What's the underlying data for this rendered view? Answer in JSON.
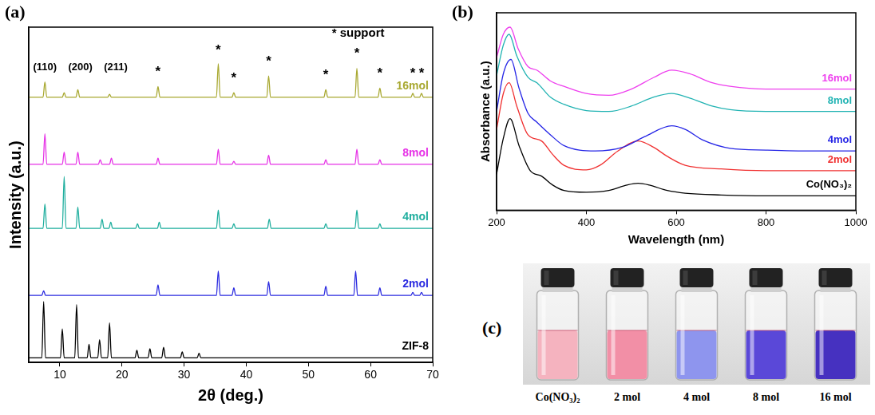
{
  "chart_data": [
    {
      "type": "line",
      "panel_label": "(a)",
      "x_label": "2θ (deg.)",
      "y_label": "Intensity (a.u.)",
      "xlim": [
        5,
        70
      ],
      "xticks": [
        10,
        20,
        30,
        40,
        50,
        60,
        70
      ],
      "ylim": [
        0,
        110
      ],
      "tick_labels": "x",
      "grid": false,
      "annotations": [
        {
          "text": "(110)",
          "x": 7.6,
          "y": 95
        },
        {
          "text": "(200)",
          "x": 13.3,
          "y": 95
        },
        {
          "text": "(211)",
          "x": 19,
          "y": 95
        },
        {
          "text": "* support",
          "x": 58,
          "y": 106
        },
        {
          "text": "*",
          "x": 25.8,
          "y": 93
        },
        {
          "text": "*",
          "x": 35.5,
          "y": 100
        },
        {
          "text": "*",
          "x": 38,
          "y": 91
        },
        {
          "text": "*",
          "x": 43.6,
          "y": 96.5
        },
        {
          "text": "*",
          "x": 52.8,
          "y": 92
        },
        {
          "text": "*",
          "x": 57.8,
          "y": 99
        },
        {
          "text": "*",
          "x": 61.5,
          "y": 92.5
        },
        {
          "text": "*",
          "x": 66.8,
          "y": 92.5
        },
        {
          "text": "*",
          "x": 68.2,
          "y": 92.5
        }
      ],
      "series": [
        {
          "name": "16mol",
          "color": "#a8a830",
          "x": [
            5,
            7.3,
            7.6,
            7.9,
            10.4,
            10.7,
            11.0,
            12.6,
            12.9,
            13.2,
            17.7,
            18.0,
            18.3,
            25.5,
            25.8,
            26.1,
            35.2,
            35.5,
            35.8,
            37.7,
            38.0,
            38.3,
            43.3,
            43.6,
            43.9,
            52.5,
            52.8,
            53.1,
            57.5,
            57.8,
            58.1,
            61.2,
            61.5,
            61.8,
            66.5,
            66.8,
            67.1,
            67.9,
            68.2,
            68.5,
            70
          ],
          "values": [
            87,
            87,
            92,
            87,
            87,
            88.5,
            87,
            87,
            89.5,
            87,
            87,
            88,
            87,
            87,
            90.5,
            87,
            87,
            98,
            87,
            87,
            88.5,
            87,
            87,
            94,
            87,
            87,
            89.5,
            87,
            87,
            96.5,
            87,
            87,
            90,
            87,
            87,
            88.3,
            87,
            87,
            88.3,
            87,
            87
          ]
        },
        {
          "name": "8mol",
          "color": "#e632e6",
          "x": [
            5,
            7.3,
            7.6,
            7.9,
            10.4,
            10.7,
            11.0,
            12.6,
            12.9,
            13.2,
            16.2,
            16.5,
            16.8,
            18.0,
            18.3,
            18.6,
            25.5,
            25.8,
            26.1,
            35.2,
            35.5,
            35.8,
            37.7,
            38.0,
            38.3,
            43.3,
            43.6,
            43.9,
            52.5,
            52.8,
            53.1,
            57.5,
            57.8,
            58.1,
            61.2,
            61.5,
            61.8,
            70
          ],
          "values": [
            65,
            65,
            75,
            65,
            65,
            69,
            65,
            65,
            69,
            65,
            65,
            66.5,
            65,
            65,
            67,
            65,
            65,
            67,
            65,
            65,
            70,
            65,
            65,
            66,
            65,
            65,
            68,
            65,
            65,
            66.5,
            65,
            65,
            70,
            65,
            65,
            66.5,
            65,
            65
          ]
        },
        {
          "name": "4mol",
          "color": "#1fae9e",
          "x": [
            5,
            7.3,
            7.6,
            7.9,
            10.4,
            10.7,
            11.0,
            12.6,
            12.9,
            13.2,
            16.5,
            16.8,
            17.1,
            17.9,
            18.2,
            18.5,
            22.2,
            22.5,
            22.8,
            25.7,
            26.0,
            26.3,
            35.2,
            35.5,
            35.8,
            37.7,
            38.0,
            38.3,
            43.4,
            43.7,
            44.0,
            52.5,
            52.8,
            53.1,
            57.5,
            57.8,
            58.1,
            61.2,
            61.5,
            61.8,
            70
          ],
          "values": [
            44,
            44,
            52,
            44,
            44,
            61,
            44,
            44,
            51,
            44,
            44,
            47,
            44,
            44,
            46,
            44,
            44,
            45.5,
            44,
            44,
            46,
            44,
            44,
            50,
            44,
            44,
            45.5,
            44,
            44,
            47,
            44,
            44,
            45.5,
            44,
            44,
            50,
            44,
            44,
            45.5,
            44,
            44
          ]
        },
        {
          "name": "2mol",
          "color": "#2b2be0",
          "x": [
            5,
            7.1,
            7.4,
            7.7,
            25.5,
            25.8,
            26.1,
            35.2,
            35.5,
            35.8,
            37.7,
            38.0,
            38.3,
            43.3,
            43.6,
            43.9,
            52.5,
            52.8,
            53.1,
            57.3,
            57.6,
            57.9,
            61.2,
            61.5,
            61.8,
            66.5,
            66.8,
            67.1,
            67.9,
            68.2,
            68.5,
            70
          ],
          "values": [
            22,
            22,
            23.5,
            22,
            22,
            25.5,
            22,
            22,
            30,
            22,
            22,
            24.5,
            22,
            22,
            26.5,
            22,
            22,
            25,
            22,
            22,
            30,
            22,
            22,
            24.5,
            22,
            22,
            23,
            22,
            22,
            23,
            22,
            22
          ]
        },
        {
          "name": "ZIF-8",
          "color": "#000000",
          "x": [
            5,
            7.1,
            7.4,
            7.7,
            10.1,
            10.4,
            10.7,
            12.4,
            12.7,
            13.0,
            14.4,
            14.7,
            15.0,
            16.1,
            16.4,
            16.7,
            17.7,
            18.0,
            18.3,
            22.1,
            22.4,
            22.7,
            24.2,
            24.5,
            24.8,
            26.4,
            26.7,
            27.0,
            29.4,
            29.7,
            30.0,
            32.1,
            32.4,
            32.7,
            70
          ],
          "values": [
            1.5,
            1.5,
            20,
            1.5,
            1.5,
            11,
            1.5,
            1.5,
            19,
            1.5,
            1.5,
            6,
            1.5,
            1.5,
            7.5,
            1.5,
            1.5,
            13,
            1.5,
            1.5,
            4,
            1.5,
            1.5,
            4.5,
            1.5,
            1.5,
            5,
            1.5,
            1.5,
            3.5,
            1.5,
            1.5,
            3,
            1.5,
            1.5
          ]
        }
      ]
    },
    {
      "type": "line",
      "panel_label": "(b)",
      "x_label": "Wavelength (nm)",
      "y_label": "Absorbance (a.u.)",
      "xlim": [
        200,
        1000
      ],
      "xticks": [
        200,
        400,
        600,
        800,
        1000
      ],
      "ylim": [
        0,
        110
      ],
      "tick_labels": "x",
      "grid": false,
      "series": [
        {
          "name": "16mol",
          "color": "#ee3fee",
          "x": [
            200,
            215,
            230,
            248,
            270,
            290,
            320,
            350,
            400,
            450,
            500,
            550,
            590,
            630,
            680,
            720,
            800,
            900,
            1000
          ],
          "values": [
            85,
            98,
            102,
            90,
            80,
            78,
            72,
            69,
            65,
            64,
            67.5,
            74,
            78,
            76,
            71,
            69,
            67.5,
            67.5,
            67.5
          ]
        },
        {
          "name": "8mol",
          "color": "#21b3b3",
          "x": [
            200,
            215,
            228,
            245,
            270,
            290,
            320,
            350,
            400,
            450,
            500,
            550,
            590,
            630,
            680,
            720,
            800,
            900,
            1000
          ],
          "values": [
            75,
            92,
            98,
            86,
            74,
            71,
            63,
            59,
            55.5,
            55,
            58,
            63,
            65,
            62.5,
            58,
            56,
            55,
            55,
            55
          ]
        },
        {
          "name": "4mol",
          "color": "#2626e6",
          "x": [
            200,
            215,
            232,
            250,
            270,
            290,
            320,
            350,
            420,
            480,
            530,
            590,
            620,
            660,
            720,
            800,
            900,
            1000
          ],
          "values": [
            55,
            76,
            84,
            68,
            54,
            49,
            42,
            36,
            33,
            35,
            41,
            47,
            45,
            39,
            34.5,
            33.5,
            33,
            33
          ]
        },
        {
          "name": "2mol",
          "color": "#f03030",
          "x": [
            200,
            215,
            228,
            245,
            270,
            300,
            325,
            350,
            400,
            430,
            470,
            515,
            550,
            580,
            620,
            700,
            800,
            900,
            1000
          ],
          "values": [
            45,
            65,
            71,
            58,
            42,
            38.6,
            31,
            25,
            22.5,
            25,
            33,
            38.6,
            35,
            30,
            25,
            23,
            22,
            22,
            22
          ]
        },
        {
          "name": "Co(NO₃)₂",
          "color": "#000000",
          "x": [
            200,
            215,
            230,
            250,
            275,
            300,
            325,
            350,
            400,
            450,
            490,
            515,
            540,
            580,
            620,
            700,
            800,
            900,
            1000
          ],
          "values": [
            20,
            40,
            51,
            36,
            22,
            19,
            14,
            11,
            10,
            11,
            14,
            15,
            14,
            11,
            9.5,
            8.5,
            8,
            8,
            8
          ]
        }
      ]
    }
  ],
  "photo": {
    "panel_label": "(c)",
    "vials": [
      {
        "label": "Co(NO₃)₂",
        "color": "#f5b3bf"
      },
      {
        "label": "2 mol",
        "color": "#f28fa6"
      },
      {
        "label": "4 mol",
        "color": "#8e95ee"
      },
      {
        "label": "8 mol",
        "color": "#5a48d8"
      },
      {
        "label": "16 mol",
        "color": "#4631c0"
      }
    ]
  }
}
